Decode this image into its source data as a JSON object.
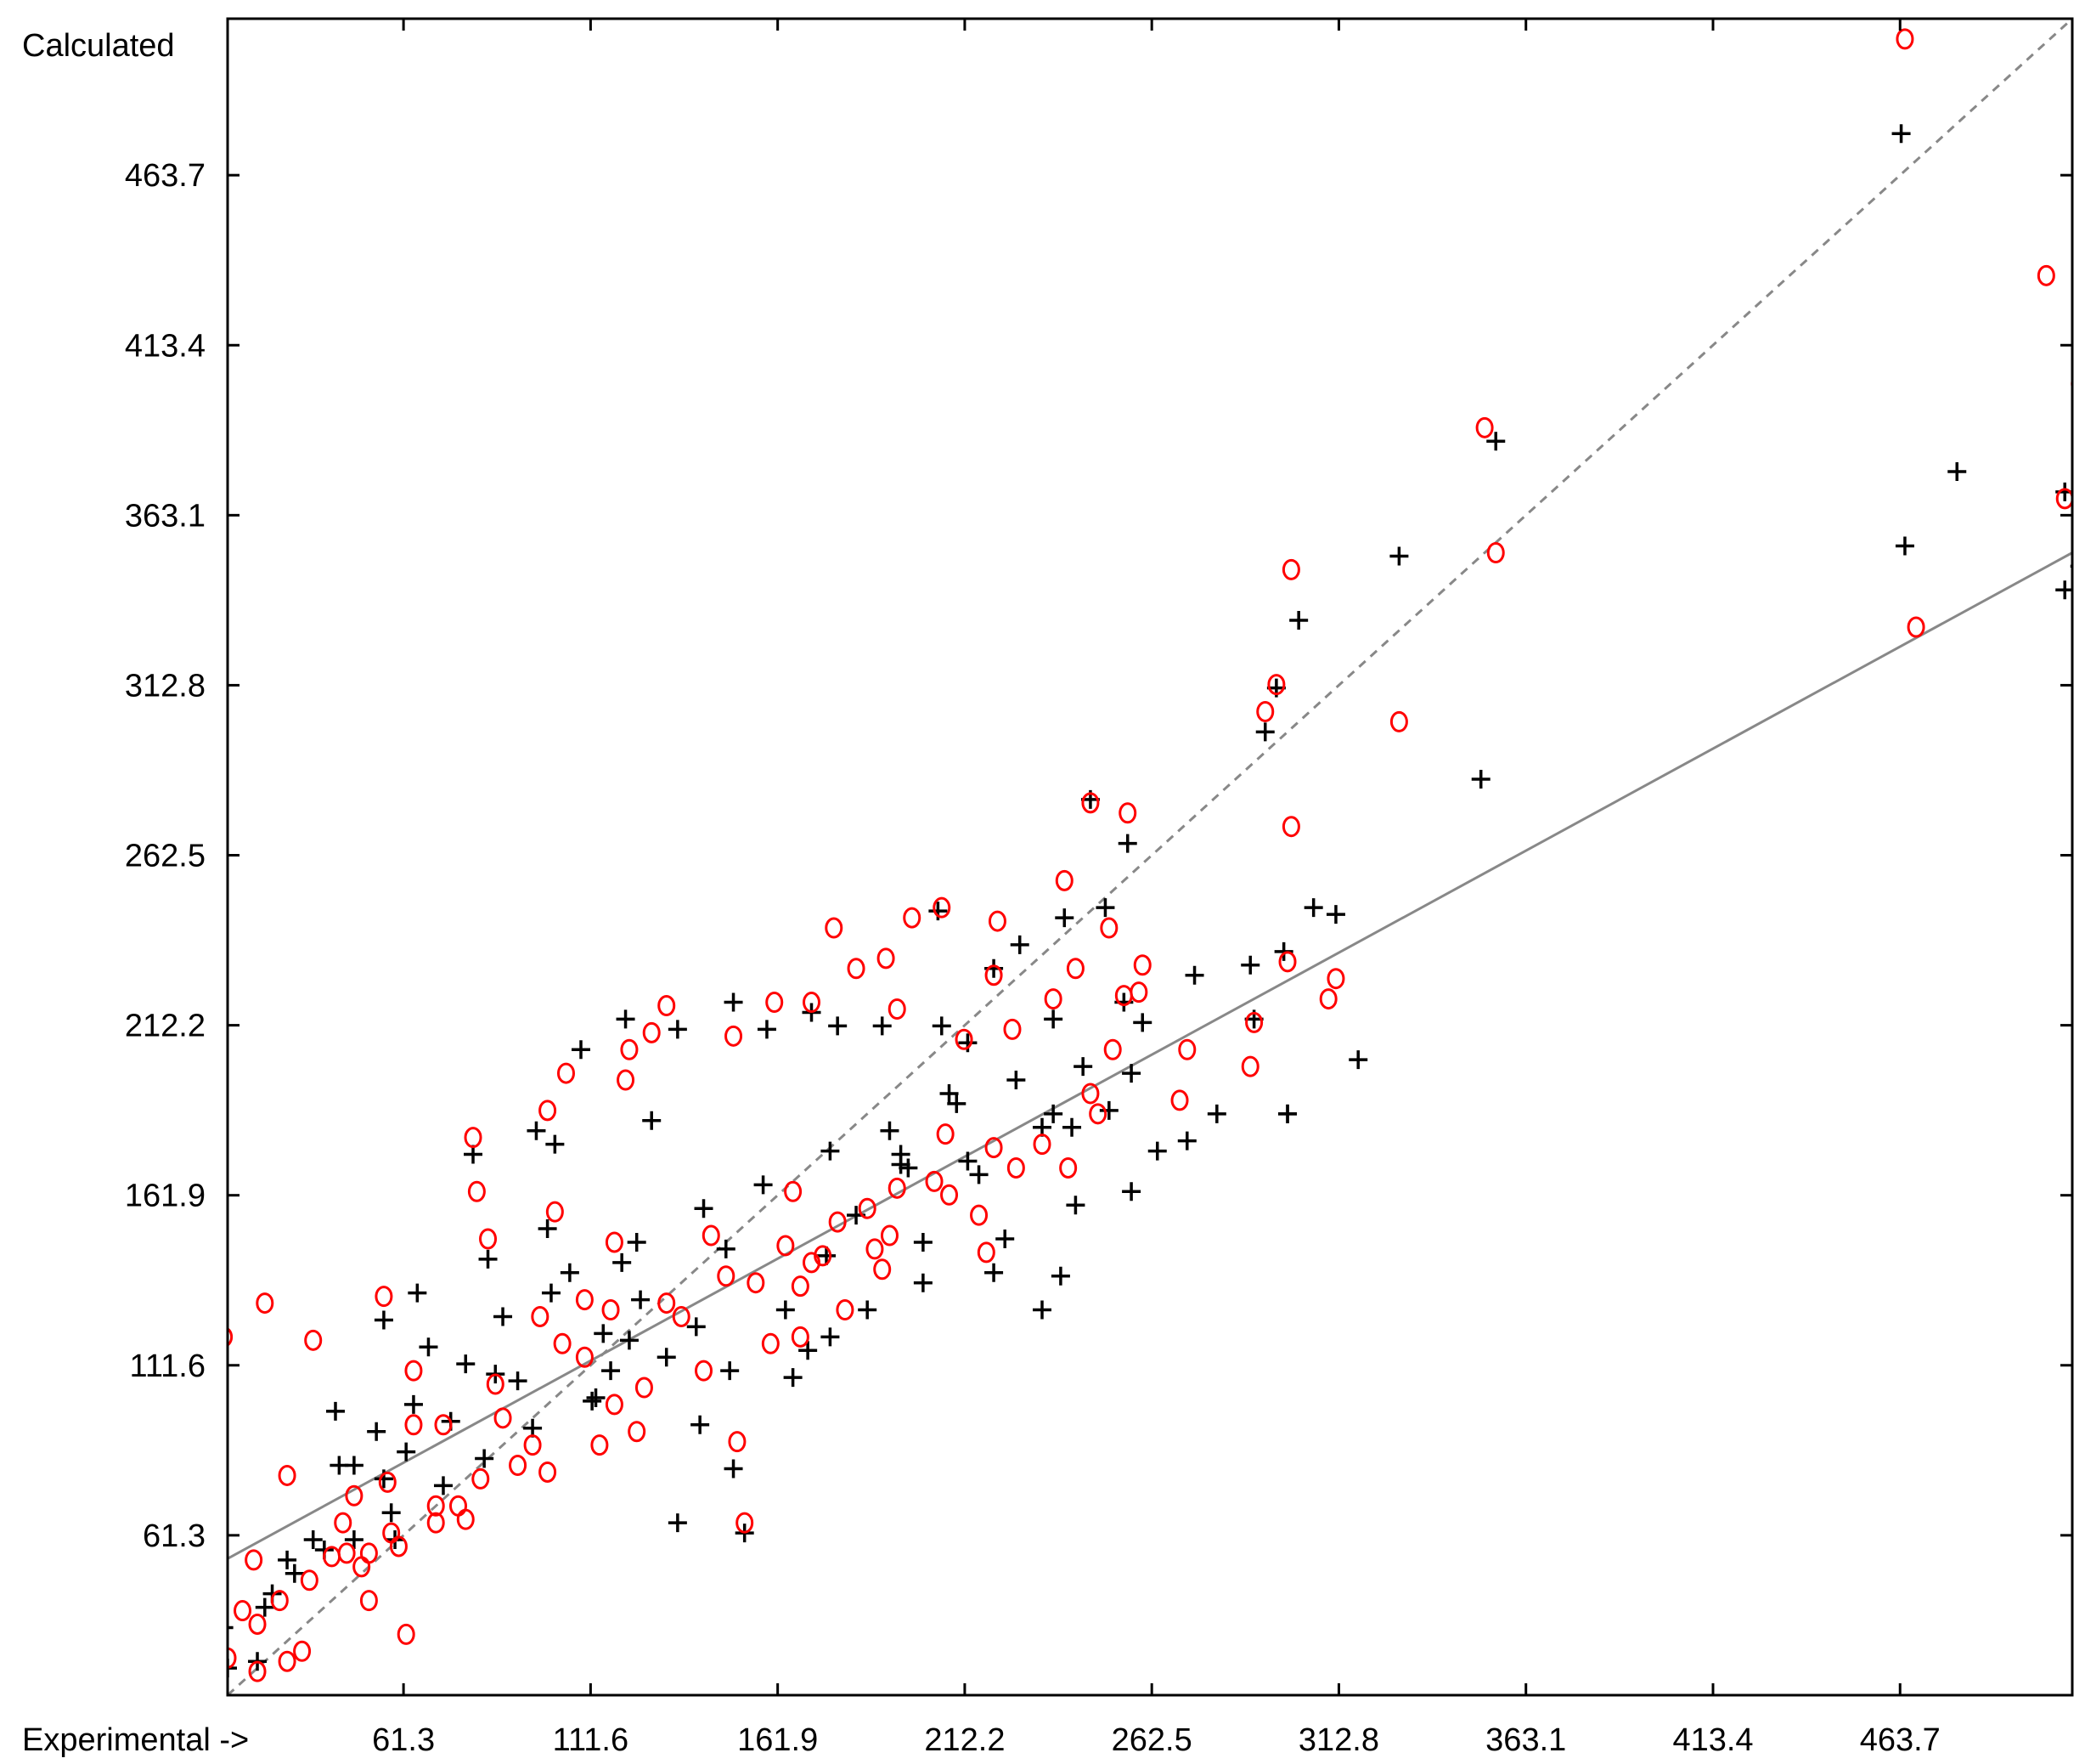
{
  "chart_data": {
    "type": "scatter",
    "title": "",
    "xlabel": "Experimental ->",
    "ylabel": "Calculated",
    "xlim": [
      14.0,
      510.0
    ],
    "ylim": [
      14.0,
      510.0
    ],
    "x_ticks": [
      "61.3",
      "111.6",
      "161.9",
      "212.2",
      "262.5",
      "312.8",
      "363.1",
      "413.4",
      "463.7"
    ],
    "y_ticks": [
      "61.3",
      "111.6",
      "161.9",
      "212.2",
      "262.5",
      "312.8",
      "363.1",
      "413.4",
      "463.7"
    ],
    "tick_values": [
      61.3,
      111.6,
      161.9,
      212.2,
      262.5,
      312.8,
      363.1,
      413.4,
      463.7
    ],
    "grid": false,
    "legend": "none",
    "series": [
      {
        "marker": "plus",
        "color": "#000000",
        "x": [
          464.0,
          479.0,
          508.0,
          512.0,
          508.0,
          465.0,
          355.0,
          351.0,
          329.0,
          302.0,
          296.0,
          293.0,
          298.0,
          299.0,
          289.0,
          290.0,
          256.0,
          239.0,
          236.0,
          246.0,
          306.0,
          312.0,
          274.0,
          227.0,
          205.0,
          220.0,
          206.0,
          250.0,
          260.0,
          255.0,
          251.0,
          213.0,
          190.0,
          178.0,
          195.0,
          213.0,
          236.0,
          171.0,
          159.0,
          150.0,
          121.0,
          135.0,
          128.0,
          109.0,
          97.0,
          102.0,
          80.0,
          56.0,
          59.0,
          117.0,
          153.0,
          135.0,
          150.0,
          166.0,
          176.0,
          120.0,
          100.0,
          84.0,
          65.0,
          43.0,
          48.0,
          56.0,
          37.0,
          30.0,
          24.0,
          13.0,
          22.0,
          14.0,
          280.0,
          272.0,
          257.0,
          233.0,
          208.0,
          241.0,
          299.0,
          318.0,
          264.0,
          257.0,
          242.0,
          216.0,
          195.0,
          175.0,
          164.0,
          140.0,
          122.0,
          113.0,
          141.0,
          197.0,
          183.0,
          201.0,
          220.0,
          233.0,
          238.0,
          223.0,
          201.0,
          186.0,
          170.0,
          149.0,
          132.0,
          112.0,
          96.0,
          83.0,
          72.0,
          58.0,
          48.0,
          40.0,
          32.0,
          26.0,
          86.0,
          125.0,
          148.0,
          115.0,
          92.0,
          74.0,
          62.0,
          101.0,
          78.0,
          64.0,
          54.0,
          44.0,
          68.0,
          88.0,
          106.0,
          124.0,
          142.0,
          158.0,
          176.0,
          192.0,
          210.0,
          226.0,
          244.0
        ],
        "y": [
          476.0,
          376.0,
          370.0,
          348.0,
          341.0,
          354.0,
          385.0,
          285.0,
          351.0,
          332.0,
          312.0,
          299.0,
          234.0,
          186.0,
          230.0,
          214.0,
          266.0,
          244.0,
          214.0,
          279.0,
          247.0,
          245.0,
          227.0,
          236.0,
          246.0,
          229.0,
          212.0,
          247.0,
          213.0,
          219.0,
          187.0,
          207.0,
          212.0,
          212.0,
          174.0,
          172.0,
          186.0,
          216.0,
          211.0,
          219.0,
          214.0,
          211.0,
          184.0,
          205.0,
          181.0,
          177.0,
          174.0,
          125.0,
          60.0,
          110.0,
          62.0,
          65.0,
          81.0,
          108.0,
          120.0,
          142.0,
          152.0,
          143.0,
          133.0,
          98.0,
          82.0,
          78.0,
          60.0,
          54.0,
          40.0,
          34.0,
          24.0,
          22.0,
          186.0,
          178.0,
          198.0,
          182.0,
          192.0,
          182.0,
          186.0,
          202.0,
          175.0,
          163.0,
          159.0,
          168.0,
          171.0,
          144.0,
          128.0,
          123.0,
          119.0,
          102.0,
          94.0,
          170.0,
          156.0,
          148.0,
          139.0,
          128.0,
          138.0,
          149.0,
          136.0,
          128.0,
          116.0,
          110.0,
          114.0,
          101.0,
          93.0,
          84.0,
          76.0,
          68.0,
          60.0,
          57.0,
          50.0,
          44.0,
          109.0,
          131.0,
          146.0,
          121.0,
          107.0,
          95.0,
          86.0,
          133.0,
          112.0,
          100.0,
          92.0,
          82.0,
          117.0,
          126.0,
          139.0,
          148.0,
          158.0,
          165.0,
          175.0,
          181.0,
          189.0,
          196.0,
          200.0
        ]
      },
      {
        "marker": "circle",
        "color": "#ff0000",
        "x": [
          465.0,
          503.0,
          512.0,
          508.0,
          468.0,
          352.0,
          355.0,
          329.0,
          300.0,
          296.0,
          293.0,
          300.0,
          299.0,
          290.0,
          289.0,
          256.0,
          239.0,
          236.0,
          246.0,
          206.0,
          198.0,
          191.0,
          177.0,
          194.0,
          221.0,
          251.0,
          260.0,
          259.0,
          255.0,
          212.0,
          225.0,
          220.0,
          312.0,
          310.0,
          272.0,
          270.0,
          242.0,
          183.0,
          171.0,
          161.0,
          150.0,
          132.0,
          128.0,
          122.0,
          121.0,
          105.0,
          100.0,
          80.0,
          81.0,
          64.0,
          57.0,
          52.0,
          48.0,
          45.0,
          117.0,
          118.0,
          144.0,
          153.0,
          151.0,
          166.0,
          168.0,
          171.0,
          110.0,
          102.0,
          98.0,
          84.0,
          72.0,
          56.0,
          37.0,
          30.0,
          24.0,
          13.0,
          21.0,
          10.0,
          14.0,
          18.0,
          22.0,
          22.0,
          42.0,
          52.0,
          62.0,
          34.0,
          30.0,
          218.0,
          216.0,
          188.0,
          194.0,
          207.0,
          233.0,
          240.0,
          180.0,
          190.0,
          160.0,
          126.0,
          114.0,
          92.0,
          76.0,
          70.0,
          60.0,
          50.0,
          64.0,
          86.0,
          104.0,
          132.0,
          148.0,
          164.0,
          178.0,
          186.0,
          204.0,
          220.0,
          246.0,
          252.0,
          168.0,
          142.0,
          118.0,
          96.0,
          82.0,
          70.0,
          58.0,
          46.0,
          36.0,
          28.0,
          88.0,
          110.0,
          136.0,
          156.0,
          174.0,
          192.0,
          208.0,
          226.0,
          248.0,
          124.0,
          100.0,
          78.0
        ],
        "y": [
          504.0,
          434.0,
          402.0,
          368.0,
          330.0,
          389.0,
          352.0,
          302.0,
          347.0,
          313.0,
          305.0,
          271.0,
          231.0,
          213.0,
          200.0,
          275.0,
          255.0,
          220.0,
          278.0,
          247.0,
          244.0,
          232.0,
          241.0,
          217.0,
          243.0,
          241.0,
          230.0,
          222.0,
          221.0,
          208.0,
          211.0,
          227.0,
          226.0,
          220.0,
          205.0,
          190.0,
          229.0,
          229.0,
          219.0,
          219.0,
          209.0,
          218.0,
          210.0,
          205.0,
          196.0,
          198.0,
          187.0,
          179.0,
          163.0,
          110.0,
          77.0,
          56.0,
          73.0,
          65.0,
          128.0,
          148.0,
          150.0,
          65.0,
          89.0,
          163.0,
          135.0,
          142.0,
          131.0,
          157.0,
          126.0,
          149.0,
          94.0,
          132.0,
          119.0,
          79.0,
          130.0,
          120.0,
          54.0,
          40.0,
          25.0,
          39.0,
          21.0,
          35.0,
          55.0,
          42.0,
          32.0,
          27.0,
          24.0,
          145.0,
          156.0,
          146.0,
          164.0,
          180.0,
          177.0,
          170.0,
          128.0,
          140.0,
          118.0,
          105.0,
          88.0,
          82.0,
          70.0,
          65.0,
          58.0,
          52.0,
          94.0,
          106.0,
          118.0,
          130.0,
          138.0,
          147.0,
          154.0,
          158.0,
          166.0,
          176.0,
          192.0,
          205.0,
          120.0,
          110.0,
          100.0,
          88.0,
          78.0,
          70.0,
          62.0,
          56.0,
          48.0,
          42.0,
          96.0,
          114.0,
          126.0,
          136.0,
          144.0,
          150.0,
          162.0,
          170.0,
          186.0,
          92.0,
          80.0,
          66.0
        ]
      }
    ],
    "reference_lines": [
      {
        "style": "dashed",
        "color": "#888888",
        "intercept": 0.0,
        "slope": 1.0
      },
      {
        "style": "solid",
        "color": "#888888",
        "intercept": 46.0,
        "slope": 0.6
      }
    ]
  }
}
